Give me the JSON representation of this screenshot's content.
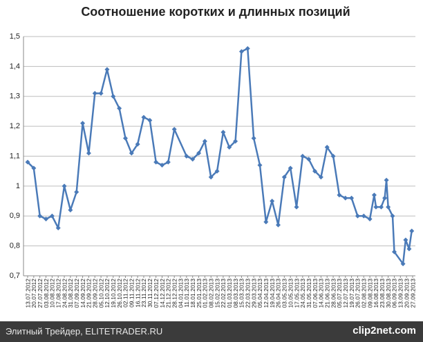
{
  "chart_data": {
    "type": "line",
    "title": "Соотношение коротких и длинных позиций",
    "x": [
      "13.07.2012",
      "20.07.2012",
      "27.07.2012",
      "03.08.2012",
      "10.08.2012",
      "17.08.2012",
      "24.08.2012",
      "31.08.2012",
      "07.09.2012",
      "14.09.2012",
      "21.09.2012",
      "28.09.2012",
      "05.10.2012",
      "12.10.2012",
      "19.10.2012",
      "26.10.2012",
      "02.11.2012",
      "09.11.2012",
      "16.11.2012",
      "23.11.2012",
      "30.11.2012",
      "07.12.2012",
      "14.12.2012",
      "21.12.2012",
      "28.12.2012",
      "11.01.2013",
      "18.01.2013",
      "25.01.2013",
      "01.02.2013",
      "08.02.2013",
      "15.02.2013",
      "22.02.2013",
      "01.03.2013",
      "08.03.2013",
      "15.03.2013",
      "22.03.2013",
      "29.03.2013",
      "05.04.2013",
      "12.04.2013",
      "19.04.2013",
      "26.04.2013",
      "03.05.2013",
      "10.05.2013",
      "17.05.2013",
      "24.05.2013",
      "31.05.2013",
      "07.06.2013",
      "14.06.2013",
      "21.06.2013",
      "28.06.2013",
      "05.07.2013",
      "12.07.2013",
      "19.07.2013",
      "26.07.2013",
      "02.08.2013",
      "09.08.2013",
      "14.08.2013",
      "16.08.2013",
      "22.08.2013",
      "26.08.2013",
      "28.08.2013",
      "30.08.2013",
      "04.09.2013",
      "06.09.2013",
      "16.09.2013",
      "19.09.2013",
      "23.09.2013",
      "26.09.2013"
    ],
    "series": [
      {
        "color": "#4a7ab8",
        "values": [
          1.08,
          1.06,
          0.9,
          0.89,
          0.9,
          0.86,
          1.0,
          0.92,
          0.98,
          1.21,
          1.11,
          1.31,
          1.31,
          1.39,
          1.3,
          1.26,
          1.16,
          1.11,
          1.14,
          1.23,
          1.22,
          1.08,
          1.07,
          1.08,
          1.19,
          1.1,
          1.09,
          1.11,
          1.15,
          1.03,
          1.05,
          1.18,
          1.13,
          1.15,
          1.45,
          1.46,
          1.16,
          1.07,
          0.88,
          0.95,
          0.87,
          1.03,
          1.06,
          0.93,
          1.1,
          1.09,
          1.05,
          1.03,
          1.13,
          1.1,
          0.97,
          0.96,
          0.96,
          0.9,
          0.9,
          0.89,
          0.97,
          0.93,
          0.93,
          0.96,
          1.02,
          0.93,
          0.9,
          0.78,
          0.74,
          0.82,
          0.79,
          0.85
        ]
      }
    ],
    "xlim": [
      "13.07.2012",
      "27.09.2013"
    ],
    "xticks": [
      "13.07.2012",
      "20.07.2012",
      "27.07.2012",
      "03.08.2012",
      "10.08.2012",
      "17.08.2012",
      "24.08.2012",
      "31.08.2012",
      "07.09.2012",
      "14.09.2012",
      "21.09.2012",
      "28.09.2012",
      "05.10.2012",
      "12.10.2012",
      "19.10.2012",
      "26.10.2012",
      "02.11.2012",
      "09.11.2012",
      "16.11.2012",
      "23.11.2012",
      "30.11.2012",
      "07.12.2012",
      "14.12.2012",
      "21.12.2012",
      "28.12.2012",
      "04.01.2013",
      "11.01.2013",
      "18.01.2013",
      "25.01.2013",
      "01.02.2013",
      "08.02.2013",
      "15.02.2013",
      "22.02.2013",
      "01.03.2013",
      "08.03.2013",
      "15.03.2013",
      "22.03.2013",
      "29.03.2013",
      "05.04.2013",
      "12.04.2013",
      "19.04.2013",
      "26.04.2013",
      "03.05.2013",
      "10.05.2013",
      "17.05.2013",
      "24.05.2013",
      "31.05.2013",
      "07.06.2013",
      "14.06.2013",
      "21.06.2013",
      "28.06.2013",
      "05.07.2013",
      "12.07.2013",
      "19.07.2013",
      "26.07.2013",
      "02.08.2013",
      "09.08.2013",
      "16.08.2013",
      "23.08.2013",
      "30.08.2013",
      "06.09.2013",
      "13.09.2013",
      "20.09.2013",
      "27.09.2013"
    ],
    "ylim": [
      0.7,
      1.5
    ],
    "yticks": [
      {
        "value": 0.7,
        "label": "0,7"
      },
      {
        "value": 0.8,
        "label": "0,8"
      },
      {
        "value": 0.9,
        "label": "0,9"
      },
      1,
      {
        "value": 1.1,
        "label": "1,1"
      },
      {
        "value": 1.2,
        "label": "1,2"
      },
      {
        "value": 1.3,
        "label": "1,3"
      },
      {
        "value": 1.4,
        "label": "1,4"
      },
      {
        "value": 1.5,
        "label": "1,5"
      }
    ],
    "grid": true
  },
  "footer": {
    "source": "Элитный Трейдер, ELITETRADER.RU",
    "watermark": "clip2net.com"
  }
}
